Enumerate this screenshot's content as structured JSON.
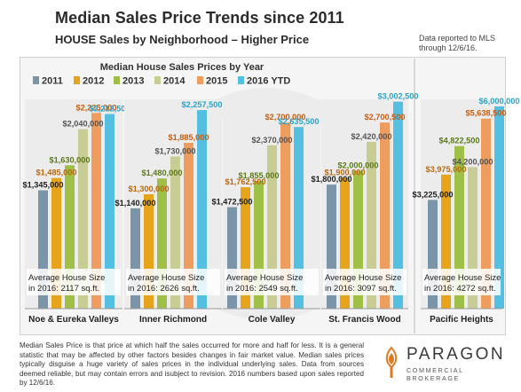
{
  "header": {
    "title": "Median Sales Price Trends since 2011",
    "subtitle": "HOUSE Sales by Neighborhood – Higher Price",
    "note_line1": "Data reported to MLS",
    "note_line2": "through 12/6/16."
  },
  "colors": {
    "2011": "#7a95a8",
    "2012": "#e5a41a",
    "2013": "#a0bf46",
    "2014": "#c7cd95",
    "2015": "#ee9d5e",
    "2016 YTD": "#54bfe0",
    "value_2012": "#b8680f",
    "value_2015": "#c85e10",
    "value_2016": "#2aa3c8",
    "value_2013": "#5b7a18"
  },
  "chart_data": {
    "type": "bar",
    "title": "Median House Sales Prices by Year",
    "series_names": [
      "2011",
      "2012",
      "2013",
      "2014",
      "2015",
      "2016 YTD"
    ],
    "legend_position": "top",
    "panels": [
      {
        "name": "Noe & Eureka Valleys",
        "values": [
          1345000,
          1485000,
          1630000,
          2040000,
          2225000,
          2212500
        ],
        "labels": [
          "$1,345,000",
          "$1,485,000",
          "$1,630,000",
          "$2,040,000",
          "$2,225,000",
          "$2,212,500"
        ],
        "size_note_1": "Average House Size",
        "size_note_2": "in 2016: 2117 sq.ft."
      },
      {
        "name": "Inner Richmond",
        "values": [
          1140000,
          1300000,
          1480000,
          1730000,
          1885000,
          2257500
        ],
        "labels": [
          "$1,140,000",
          "$1,300,000",
          "$1,480,000",
          "$1,730,000",
          "$1,885,000",
          "$2,257,500"
        ],
        "size_note_1": "Average House Size",
        "size_note_2": "in 2016: 2626 sq.ft."
      },
      {
        "name": "Cole Valley",
        "values": [
          1472500,
          1762500,
          1855000,
          2370000,
          2700000,
          2635500
        ],
        "labels": [
          "$1,472,500",
          "$1,762,500",
          "$1,855,000",
          "$2,370,000",
          "$2,700,000",
          "$2,635,500"
        ],
        "size_note_1": "Average House Size",
        "size_note_2": "in 2016: 2549 sq.ft."
      },
      {
        "name": "St. Francis Wood",
        "values": [
          1800000,
          1900000,
          2000000,
          2420000,
          2700500,
          3002500
        ],
        "labels": [
          "$1,800,000",
          "$1,900,000",
          "$2,000,000",
          "$2,420,000",
          "$2,700,500",
          "$3,002,500"
        ],
        "size_note_1": "Average House Size",
        "size_note_2": "in 2016: 3097 sq.ft."
      },
      {
        "name": "Pacific Heights",
        "values": [
          3225000,
          3975000,
          4822500,
          4200000,
          5638500,
          6000000
        ],
        "labels": [
          "$3,225,000",
          "$3,975,000",
          "$4,822,500",
          "$4,200,000",
          "$5,638,500",
          "$6,000,000"
        ],
        "size_note_1": "Average House Size",
        "size_note_2": "in 2016: 4272 sq.ft."
      }
    ]
  },
  "footer": {
    "text": "Median Sales Price is that price at which half the sales occurred for more and half for less. It is a general statistic that may be affected by other factors besides changes in fair market value. Median sales prices typically disguise a huge variety of sales prices in the individual underlying sales. Data from sources deemed reliable, but may contain errors and isubject to revision. 2016 numbers based upon sales reported by 12/6/16.",
    "logo_name": "PARAGON",
    "logo_sub": "COMMERCIAL BROKERAGE",
    "logo_icon": "paragon-torch-icon"
  }
}
